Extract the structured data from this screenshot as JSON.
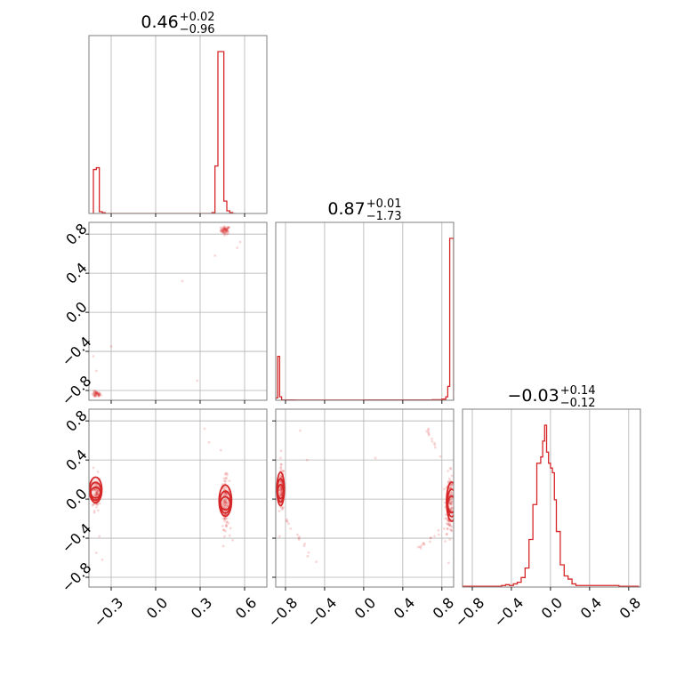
{
  "chart_data": {
    "type": "corner",
    "color": "#d62728",
    "grid": true,
    "panel_titles": [
      {
        "value": "0.46",
        "upper": "+0.02",
        "lower": "−0.96"
      },
      {
        "value": "0.87",
        "upper": "+0.01",
        "lower": "−1.73"
      },
      {
        "value": "−0.03",
        "upper": "+0.14",
        "lower": "−0.12"
      }
    ],
    "ranges": [
      [
        -0.45,
        0.75
      ],
      [
        -0.9,
        0.92
      ],
      [
        -0.9,
        0.92
      ]
    ],
    "ticks": [
      {
        "values": [
          -0.3,
          0.0,
          0.3,
          0.6
        ],
        "labels": [
          "−0.3",
          "0.0",
          "0.3",
          "0.6"
        ]
      },
      {
        "values": [
          -0.8,
          -0.4,
          0.0,
          0.4,
          0.8
        ],
        "labels": [
          "−0.8",
          "−0.4",
          "0.0",
          "0.4",
          "0.8"
        ]
      },
      {
        "values": [
          -0.8,
          -0.4,
          0.0,
          0.4,
          0.8
        ],
        "labels": [
          "−0.8",
          "−0.4",
          "0.0",
          "0.4",
          "0.8"
        ]
      }
    ],
    "histograms": [
      {
        "bin_edges": [
          -0.42,
          -0.4,
          -0.38,
          -0.36,
          -0.34,
          0.0,
          0.38,
          0.4,
          0.42,
          0.44,
          0.46,
          0.48,
          0.5,
          0.52,
          0.54
        ],
        "counts": [
          25,
          26,
          1,
          0.4,
          0,
          0,
          0.5,
          27,
          92,
          92,
          7,
          1.5,
          0.5,
          0
        ]
      },
      {
        "bin_edges": [
          -0.9,
          -0.88,
          -0.86,
          -0.84,
          -0.82,
          -0.8,
          -0.7,
          0.0,
          0.7,
          0.8,
          0.84,
          0.86,
          0.88,
          0.9,
          0.92
        ],
        "counts": [
          2,
          38,
          3,
          0.3,
          0.2,
          0.3,
          0.2,
          0.3,
          0.5,
          1,
          3,
          12,
          140,
          140
        ]
      },
      {
        "bin_edges": [
          -0.9,
          -0.7,
          -0.5,
          -0.46,
          -0.42,
          -0.38,
          -0.34,
          -0.3,
          -0.26,
          -0.22,
          -0.18,
          -0.14,
          -0.1,
          -0.08,
          -0.06,
          -0.04,
          -0.02,
          0.0,
          0.02,
          0.04,
          0.06,
          0.1,
          0.14,
          0.18,
          0.22,
          0.26,
          0.3,
          0.34,
          0.5,
          0.7,
          0.9
        ],
        "counts": [
          0.5,
          0.5,
          1,
          1.5,
          1,
          2,
          3,
          6,
          12,
          30,
          52,
          78,
          82,
          92,
          102,
          85,
          78,
          75,
          72,
          55,
          35,
          14,
          7,
          5,
          2,
          1,
          1,
          1,
          1,
          0.5
        ]
      }
    ],
    "scatter": [
      {
        "row": 1,
        "col": 0,
        "clusters": [
          {
            "cx": 0.47,
            "cy": 0.84,
            "sx": 0.015,
            "sy": 0.02,
            "n": 60
          },
          {
            "cx": -0.4,
            "cy": -0.84,
            "sx": 0.015,
            "sy": 0.015,
            "n": 45
          }
        ],
        "outliers": [
          [
            0.55,
            0.66
          ],
          [
            0.57,
            0.72
          ],
          [
            0.4,
            0.58
          ],
          [
            0.18,
            0.32
          ],
          [
            -0.3,
            -0.35
          ],
          [
            -0.42,
            -0.45
          ],
          [
            -0.4,
            -0.6
          ],
          [
            0.28,
            -0.7
          ]
        ]
      },
      {
        "row": 2,
        "col": 0,
        "clusters": [
          {
            "cx": -0.4,
            "cy": 0.07,
            "sx": 0.013,
            "sy": 0.09,
            "n": 90
          },
          {
            "cx": 0.47,
            "cy": -0.04,
            "sx": 0.013,
            "sy": 0.13,
            "n": 130
          }
        ],
        "outliers": [
          [
            -0.42,
            0.32
          ],
          [
            -0.38,
            -0.38
          ],
          [
            -0.4,
            -0.55
          ],
          [
            0.36,
            0.58
          ],
          [
            0.33,
            0.72
          ],
          [
            0.52,
            -0.42
          ],
          [
            0.44,
            0.5
          ],
          [
            -0.36,
            -0.62
          ]
        ]
      },
      {
        "row": 2,
        "col": 1,
        "clusters": [
          {
            "cx": -0.84,
            "cy": 0.1,
            "sx": 0.012,
            "sy": 0.12,
            "n": 100
          },
          {
            "cx": 0.88,
            "cy": -0.05,
            "sx": 0.02,
            "sy": 0.15,
            "n": 130
          }
        ],
        "arcs": [
          {
            "x0": -0.8,
            "y0": -0.2,
            "x1": -0.5,
            "y1": -0.65,
            "n": 14
          },
          {
            "x0": 0.82,
            "y0": -0.3,
            "x1": 0.55,
            "y1": -0.5,
            "n": 14
          },
          {
            "x0": 0.82,
            "y0": 0.35,
            "x1": 0.65,
            "y1": 0.72,
            "n": 12
          }
        ],
        "outliers": [
          [
            -0.58,
            0.4
          ],
          [
            -0.65,
            0.7
          ],
          [
            0.12,
            0.42
          ],
          [
            -0.85,
            0.42
          ],
          [
            -0.86,
            -0.38
          ]
        ]
      }
    ],
    "contours": [
      {
        "row": 2,
        "col": 0,
        "cx": -0.405,
        "cy": 0.08,
        "rx": 0.028,
        "ry": 0.13
      },
      {
        "row": 2,
        "col": 0,
        "cx": 0.47,
        "cy": -0.03,
        "rx": 0.028,
        "ry": 0.16
      },
      {
        "row": 2,
        "col": 1,
        "cx": -0.85,
        "cy": 0.09,
        "rx": 0.025,
        "ry": 0.17
      },
      {
        "row": 2,
        "col": 1,
        "cx": 0.9,
        "cy": -0.04,
        "rx": 0.035,
        "ry": 0.2
      }
    ]
  }
}
